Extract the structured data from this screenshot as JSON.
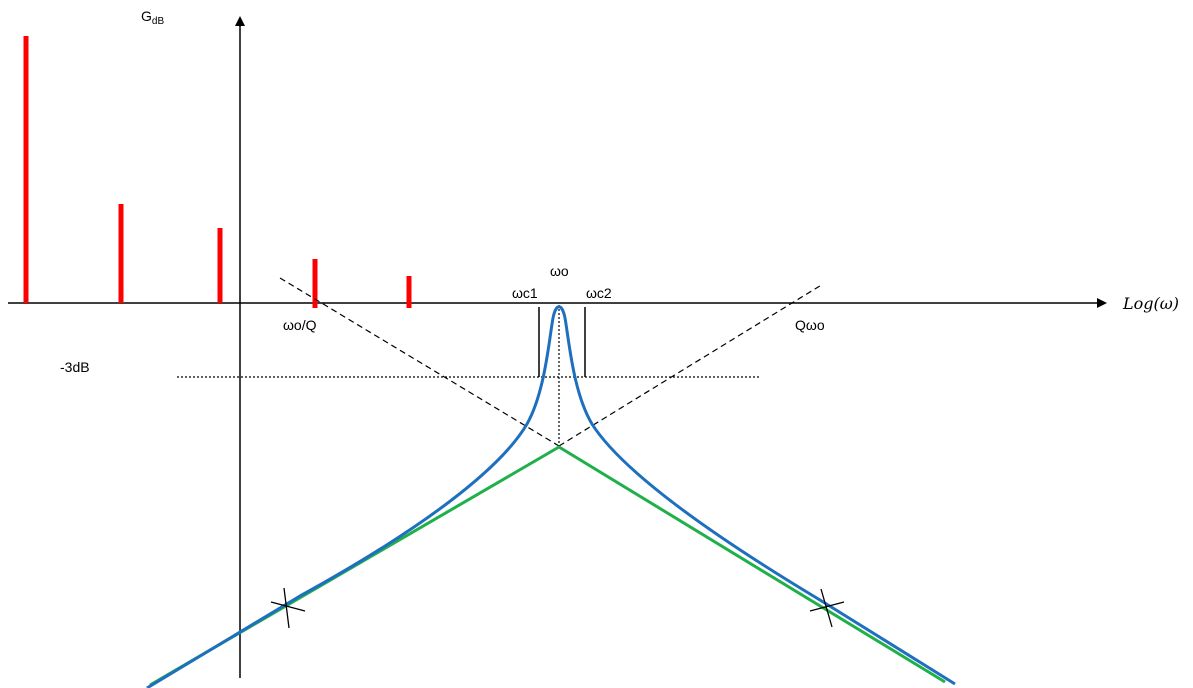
{
  "labels": {
    "y_axis_main": "G",
    "y_axis_sub": "dB",
    "x_axis": "Log(ω)",
    "minus3db": "-3dB",
    "omega0": "ωo",
    "omega_c1": "ωc1",
    "omega_c2": "ωc2",
    "omega0_over_q": "ωo/Q",
    "q_omega0": "Qωo"
  },
  "colors": {
    "axis": "#000000",
    "spectral_lines": "#ff0000",
    "response_curve": "#1f6fbf",
    "asymptotes": "#1fb04a",
    "dashed_asymptote_extensions": "#000000",
    "minus3db_line": "#000000"
  }
}
